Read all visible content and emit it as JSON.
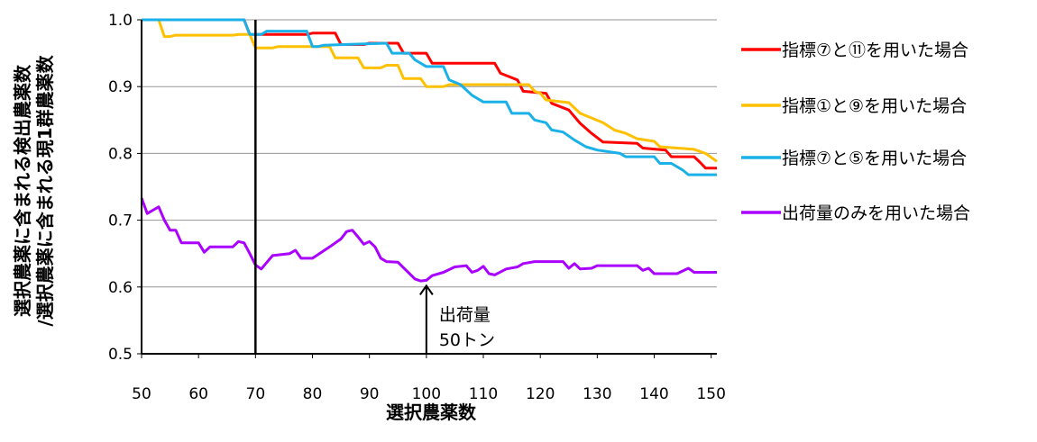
{
  "chart_data": {
    "type": "line",
    "xlabel": "選択農薬数",
    "ylabel_line1": "選択農薬に含まれる検出農薬数",
    "ylabel_line2": "/選択農薬に含まれる現1群農薬数",
    "xlim": [
      50,
      151
    ],
    "ylim": [
      0.5,
      1.0
    ],
    "x_ticks": [
      50,
      60,
      70,
      80,
      90,
      100,
      110,
      120,
      130,
      140,
      150
    ],
    "y_ticks": [
      "0.5",
      "0.6",
      "0.7",
      "0.8",
      "0.9",
      "1.0"
    ],
    "grid": "horizontal",
    "legend_position": "right",
    "vertical_line_x": 70,
    "annotation": {
      "x": 100,
      "y": 0.61,
      "line1": "出荷量",
      "line2": "50トン"
    },
    "series": [
      {
        "name": "指標⑦と⑪を用いた場合",
        "color": "#ff0000",
        "points": [
          [
            50,
            1.0
          ],
          [
            68,
            1.0
          ],
          [
            69,
            0.978
          ],
          [
            79,
            0.978
          ],
          [
            80,
            0.98
          ],
          [
            84,
            0.98
          ],
          [
            85,
            0.963
          ],
          [
            89,
            0.963
          ],
          [
            90,
            0.965
          ],
          [
            95,
            0.965
          ],
          [
            96,
            0.95
          ],
          [
            100,
            0.95
          ],
          [
            101,
            0.935
          ],
          [
            112,
            0.935
          ],
          [
            113,
            0.92
          ],
          [
            116,
            0.91
          ],
          [
            117,
            0.893
          ],
          [
            121,
            0.89
          ],
          [
            122,
            0.875
          ],
          [
            125,
            0.865
          ],
          [
            127,
            0.845
          ],
          [
            129,
            0.83
          ],
          [
            131,
            0.817
          ],
          [
            137,
            0.815
          ],
          [
            138,
            0.808
          ],
          [
            142,
            0.805
          ],
          [
            143,
            0.795
          ],
          [
            147,
            0.795
          ],
          [
            148,
            0.787
          ],
          [
            149,
            0.778
          ],
          [
            151,
            0.778
          ]
        ]
      },
      {
        "name": "指標①と⑨を用いた場合",
        "color": "#ffc000",
        "points": [
          [
            50,
            1.0
          ],
          [
            53,
            1.0
          ],
          [
            54,
            0.975
          ],
          [
            55,
            0.975
          ],
          [
            56,
            0.977
          ],
          [
            66,
            0.977
          ],
          [
            67,
            0.978
          ],
          [
            69,
            0.978
          ],
          [
            70,
            0.958
          ],
          [
            73,
            0.958
          ],
          [
            74,
            0.96
          ],
          [
            83,
            0.96
          ],
          [
            84,
            0.943
          ],
          [
            88,
            0.943
          ],
          [
            89,
            0.928
          ],
          [
            92,
            0.928
          ],
          [
            93,
            0.932
          ],
          [
            95,
            0.932
          ],
          [
            96,
            0.912
          ],
          [
            99,
            0.912
          ],
          [
            100,
            0.9
          ],
          [
            103,
            0.9
          ],
          [
            104,
            0.903
          ],
          [
            118,
            0.903
          ],
          [
            119,
            0.893
          ],
          [
            120,
            0.89
          ],
          [
            121,
            0.88
          ],
          [
            125,
            0.876
          ],
          [
            127,
            0.86
          ],
          [
            131,
            0.846
          ],
          [
            133,
            0.835
          ],
          [
            135,
            0.83
          ],
          [
            137,
            0.822
          ],
          [
            140,
            0.818
          ],
          [
            141,
            0.81
          ],
          [
            147,
            0.806
          ],
          [
            149,
            0.8
          ],
          [
            151,
            0.788
          ]
        ]
      },
      {
        "name": "指標⑦と⑤を用いた場合",
        "color": "#1ab0e8",
        "points": [
          [
            50,
            1.0
          ],
          [
            68,
            1.0
          ],
          [
            69,
            0.978
          ],
          [
            71,
            0.978
          ],
          [
            72,
            0.983
          ],
          [
            79,
            0.983
          ],
          [
            80,
            0.96
          ],
          [
            81,
            0.96
          ],
          [
            82,
            0.962
          ],
          [
            93,
            0.965
          ],
          [
            94,
            0.95
          ],
          [
            97,
            0.95
          ],
          [
            98,
            0.94
          ],
          [
            100,
            0.93
          ],
          [
            103,
            0.93
          ],
          [
            104,
            0.91
          ],
          [
            106,
            0.903
          ],
          [
            108,
            0.887
          ],
          [
            110,
            0.877
          ],
          [
            114,
            0.877
          ],
          [
            115,
            0.86
          ],
          [
            118,
            0.86
          ],
          [
            119,
            0.85
          ],
          [
            121,
            0.846
          ],
          [
            122,
            0.835
          ],
          [
            124,
            0.832
          ],
          [
            126,
            0.82
          ],
          [
            128,
            0.81
          ],
          [
            130,
            0.805
          ],
          [
            134,
            0.8
          ],
          [
            135,
            0.795
          ],
          [
            140,
            0.795
          ],
          [
            141,
            0.785
          ],
          [
            143,
            0.785
          ],
          [
            145,
            0.775
          ],
          [
            146,
            0.768
          ],
          [
            151,
            0.768
          ]
        ]
      },
      {
        "name": "出荷量のみを用いた場合",
        "color": "#aa00ff",
        "points": [
          [
            50,
            0.733
          ],
          [
            51,
            0.71
          ],
          [
            52,
            0.715
          ],
          [
            53,
            0.72
          ],
          [
            54,
            0.7
          ],
          [
            55,
            0.685
          ],
          [
            56,
            0.685
          ],
          [
            57,
            0.666
          ],
          [
            60,
            0.666
          ],
          [
            61,
            0.652
          ],
          [
            62,
            0.66
          ],
          [
            66,
            0.66
          ],
          [
            67,
            0.668
          ],
          [
            68,
            0.666
          ],
          [
            69,
            0.65
          ],
          [
            70,
            0.633
          ],
          [
            71,
            0.627
          ],
          [
            72,
            0.637
          ],
          [
            73,
            0.647
          ],
          [
            76,
            0.65
          ],
          [
            77,
            0.655
          ],
          [
            78,
            0.643
          ],
          [
            80,
            0.643
          ],
          [
            83,
            0.66
          ],
          [
            85,
            0.672
          ],
          [
            86,
            0.683
          ],
          [
            87,
            0.685
          ],
          [
            88,
            0.675
          ],
          [
            89,
            0.664
          ],
          [
            90,
            0.668
          ],
          [
            91,
            0.66
          ],
          [
            92,
            0.643
          ],
          [
            93,
            0.638
          ],
          [
            95,
            0.637
          ],
          [
            98,
            0.612
          ],
          [
            99,
            0.609
          ],
          [
            100,
            0.61
          ],
          [
            101,
            0.617
          ],
          [
            103,
            0.622
          ],
          [
            105,
            0.63
          ],
          [
            107,
            0.632
          ],
          [
            108,
            0.622
          ],
          [
            109,
            0.625
          ],
          [
            110,
            0.631
          ],
          [
            111,
            0.62
          ],
          [
            112,
            0.618
          ],
          [
            114,
            0.627
          ],
          [
            116,
            0.63
          ],
          [
            117,
            0.635
          ],
          [
            119,
            0.638
          ],
          [
            124,
            0.638
          ],
          [
            125,
            0.628
          ],
          [
            126,
            0.635
          ],
          [
            127,
            0.627
          ],
          [
            129,
            0.628
          ],
          [
            130,
            0.632
          ],
          [
            137,
            0.632
          ],
          [
            138,
            0.625
          ],
          [
            139,
            0.628
          ],
          [
            140,
            0.62
          ],
          [
            144,
            0.62
          ],
          [
            146,
            0.628
          ],
          [
            147,
            0.622
          ],
          [
            151,
            0.622
          ]
        ]
      }
    ]
  }
}
